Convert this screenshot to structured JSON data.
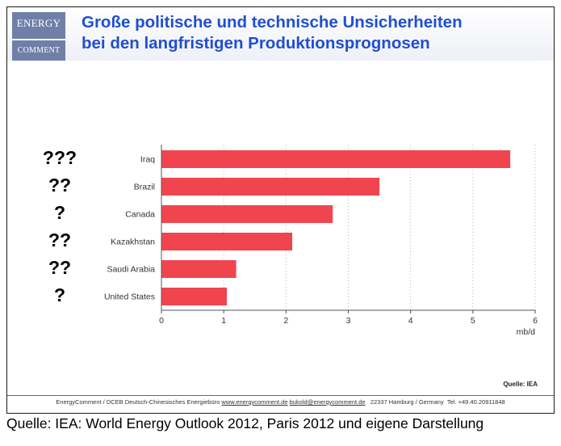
{
  "logo": {
    "line1": "ENERGY",
    "line2": "COMMENT"
  },
  "title": {
    "line1": "Große politische und technische Unsicherheiten",
    "line2": "bei den langfristigen Produktionsprognosen"
  },
  "chart_data": {
    "type": "bar",
    "orientation": "horizontal",
    "categories": [
      "Iraq",
      "Brazil",
      "Canada",
      "Kazakhstan",
      "Saudi Arabia",
      "United States"
    ],
    "values": [
      5.6,
      3.5,
      2.75,
      2.1,
      1.2,
      1.05
    ],
    "uncertainty_marks": [
      "???",
      "??",
      "?",
      "??",
      "??",
      "?"
    ],
    "xlim": [
      0,
      6
    ],
    "xticks": [
      "0",
      "1",
      "2",
      "3",
      "4",
      "5",
      "6"
    ],
    "xlabel": "mb/d",
    "ylabel": "",
    "bar_color": "#f0454f",
    "grid": "vertical dotted"
  },
  "source_inner": "Quelle: IEA",
  "footer": {
    "org": "EnergyComment / DCEB Deutsch-Chinesisches Energiebüro",
    "web": "www.energycomment.de",
    "email": "bukold@energycomment.de",
    "address": "22337 Hamburg / Germany",
    "tel": "Tel. +49.40.20911848"
  },
  "caption": "Quelle: IEA: World Energy Outlook 2012, Paris 2012 und eigene Darstellung"
}
